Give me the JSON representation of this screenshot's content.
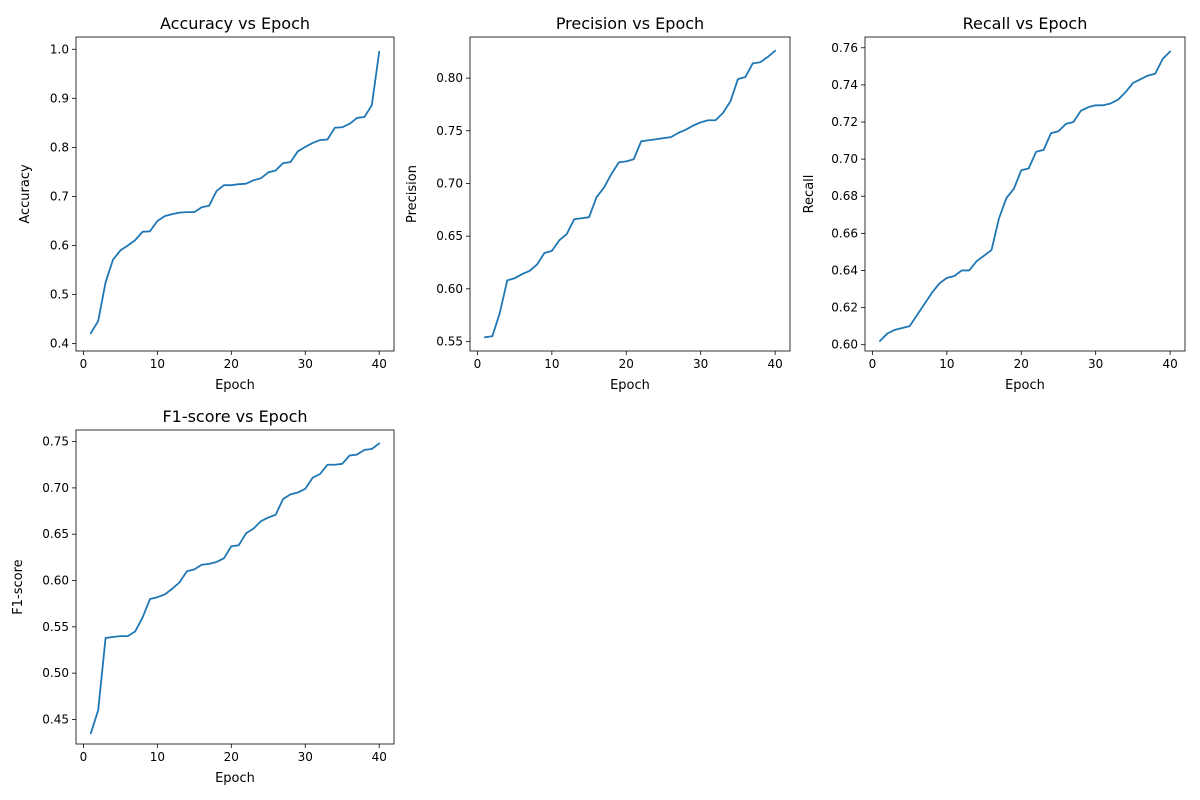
{
  "figure": {
    "line_color": "#1f77b4",
    "background": "#ffffff"
  },
  "chart_data": [
    {
      "type": "line",
      "title": "Accuracy vs Epoch",
      "xlabel": "Epoch",
      "ylabel": "Accuracy",
      "grid": false,
      "legend": "none",
      "xlim": [
        -1,
        42
      ],
      "ylim": [
        0.385,
        1.025
      ],
      "xticks": [
        0,
        10,
        20,
        30,
        40
      ],
      "xtick_labels": [
        "0",
        "10",
        "20",
        "30",
        "40"
      ],
      "yticks": [
        0.4,
        0.5,
        0.6,
        0.7,
        0.8,
        0.9,
        1.0
      ],
      "ytick_labels": [
        "0.4",
        "0.5",
        "0.6",
        "0.7",
        "0.8",
        "0.9",
        "1.0"
      ],
      "series": [
        {
          "x": [
            1,
            2,
            3,
            4,
            5,
            6,
            7,
            8,
            9,
            10,
            11,
            12,
            13,
            14,
            15,
            16,
            17,
            18,
            19,
            20,
            21,
            22,
            23,
            24,
            25,
            26,
            27,
            28,
            29,
            30,
            31,
            32,
            33,
            34,
            35,
            36,
            37,
            38,
            39,
            40
          ],
          "values": [
            0.421,
            0.446,
            0.525,
            0.571,
            0.59,
            0.6,
            0.611,
            0.628,
            0.629,
            0.65,
            0.66,
            0.664,
            0.667,
            0.668,
            0.668,
            0.678,
            0.681,
            0.711,
            0.723,
            0.723,
            0.725,
            0.726,
            0.733,
            0.737,
            0.749,
            0.753,
            0.768,
            0.77,
            0.792,
            0.801,
            0.809,
            0.815,
            0.816,
            0.84,
            0.841,
            0.848,
            0.86,
            0.862,
            0.886,
            0.995
          ]
        }
      ]
    },
    {
      "type": "line",
      "title": "Precision vs Epoch",
      "xlabel": "Epoch",
      "ylabel": "Precision",
      "grid": false,
      "legend": "none",
      "xlim": [
        -1,
        42
      ],
      "ylim": [
        0.541,
        0.839
      ],
      "xticks": [
        0,
        10,
        20,
        30,
        40
      ],
      "xtick_labels": [
        "0",
        "10",
        "20",
        "30",
        "40"
      ],
      "yticks": [
        0.55,
        0.6,
        0.65,
        0.7,
        0.75,
        0.8
      ],
      "ytick_labels": [
        "0.55",
        "0.60",
        "0.65",
        "0.70",
        "0.75",
        "0.80"
      ],
      "series": [
        {
          "x": [
            1,
            2,
            3,
            4,
            5,
            6,
            7,
            8,
            9,
            10,
            11,
            12,
            13,
            14,
            15,
            16,
            17,
            18,
            19,
            20,
            21,
            22,
            23,
            24,
            25,
            26,
            27,
            28,
            29,
            30,
            31,
            32,
            33,
            34,
            35,
            36,
            37,
            38,
            39,
            40
          ],
          "values": [
            0.554,
            0.555,
            0.577,
            0.608,
            0.61,
            0.614,
            0.617,
            0.623,
            0.634,
            0.636,
            0.646,
            0.652,
            0.666,
            0.667,
            0.668,
            0.687,
            0.696,
            0.709,
            0.72,
            0.721,
            0.723,
            0.74,
            0.741,
            0.742,
            0.743,
            0.744,
            0.748,
            0.751,
            0.755,
            0.758,
            0.76,
            0.76,
            0.767,
            0.778,
            0.799,
            0.801,
            0.814,
            0.815,
            0.82,
            0.826
          ]
        }
      ]
    },
    {
      "type": "line",
      "title": "Recall vs Epoch",
      "xlabel": "Epoch",
      "ylabel": "Recall",
      "grid": false,
      "legend": "none",
      "xlim": [
        -1,
        42
      ],
      "ylim": [
        0.5966,
        0.7658
      ],
      "xticks": [
        0,
        10,
        20,
        30,
        40
      ],
      "xtick_labels": [
        "0",
        "10",
        "20",
        "30",
        "40"
      ],
      "yticks": [
        0.6,
        0.62,
        0.64,
        0.66,
        0.68,
        0.7,
        0.72,
        0.74,
        0.76
      ],
      "ytick_labels": [
        "0.60",
        "0.62",
        "0.64",
        "0.66",
        "0.68",
        "0.70",
        "0.72",
        "0.74",
        "0.76"
      ],
      "series": [
        {
          "x": [
            1,
            2,
            3,
            4,
            5,
            6,
            7,
            8,
            9,
            10,
            11,
            12,
            13,
            14,
            15,
            16,
            17,
            18,
            19,
            20,
            21,
            22,
            23,
            24,
            25,
            26,
            27,
            28,
            29,
            30,
            31,
            32,
            33,
            34,
            35,
            36,
            37,
            38,
            39,
            40
          ],
          "values": [
            0.602,
            0.606,
            0.608,
            0.609,
            0.61,
            0.616,
            0.622,
            0.628,
            0.633,
            0.636,
            0.637,
            0.64,
            0.64,
            0.645,
            0.648,
            0.651,
            0.668,
            0.679,
            0.684,
            0.694,
            0.695,
            0.704,
            0.705,
            0.714,
            0.715,
            0.719,
            0.72,
            0.726,
            0.728,
            0.729,
            0.729,
            0.73,
            0.732,
            0.736,
            0.741,
            0.743,
            0.745,
            0.746,
            0.754,
            0.758
          ]
        }
      ]
    },
    {
      "type": "line",
      "title": "F1-score vs Epoch",
      "xlabel": "Epoch",
      "ylabel": "F1-score",
      "grid": false,
      "legend": "none",
      "xlim": [
        -1,
        42
      ],
      "ylim": [
        0.4235,
        0.7625
      ],
      "xticks": [
        0,
        10,
        20,
        30,
        40
      ],
      "xtick_labels": [
        "0",
        "10",
        "20",
        "30",
        "40"
      ],
      "yticks": [
        0.45,
        0.5,
        0.55,
        0.6,
        0.65,
        0.7,
        0.75
      ],
      "ytick_labels": [
        "0.45",
        "0.50",
        "0.55",
        "0.60",
        "0.65",
        "0.70",
        "0.75"
      ],
      "series": [
        {
          "x": [
            1,
            2,
            3,
            4,
            5,
            6,
            7,
            8,
            9,
            10,
            11,
            12,
            13,
            14,
            15,
            16,
            17,
            18,
            19,
            20,
            21,
            22,
            23,
            24,
            25,
            26,
            27,
            28,
            29,
            30,
            31,
            32,
            33,
            34,
            35,
            36,
            37,
            38,
            39,
            40
          ],
          "values": [
            0.435,
            0.46,
            0.538,
            0.539,
            0.54,
            0.54,
            0.545,
            0.56,
            0.58,
            0.582,
            0.585,
            0.591,
            0.598,
            0.61,
            0.612,
            0.617,
            0.618,
            0.62,
            0.624,
            0.637,
            0.638,
            0.651,
            0.656,
            0.664,
            0.668,
            0.671,
            0.688,
            0.693,
            0.695,
            0.699,
            0.711,
            0.715,
            0.725,
            0.725,
            0.726,
            0.735,
            0.736,
            0.741,
            0.742,
            0.748
          ]
        }
      ]
    }
  ]
}
